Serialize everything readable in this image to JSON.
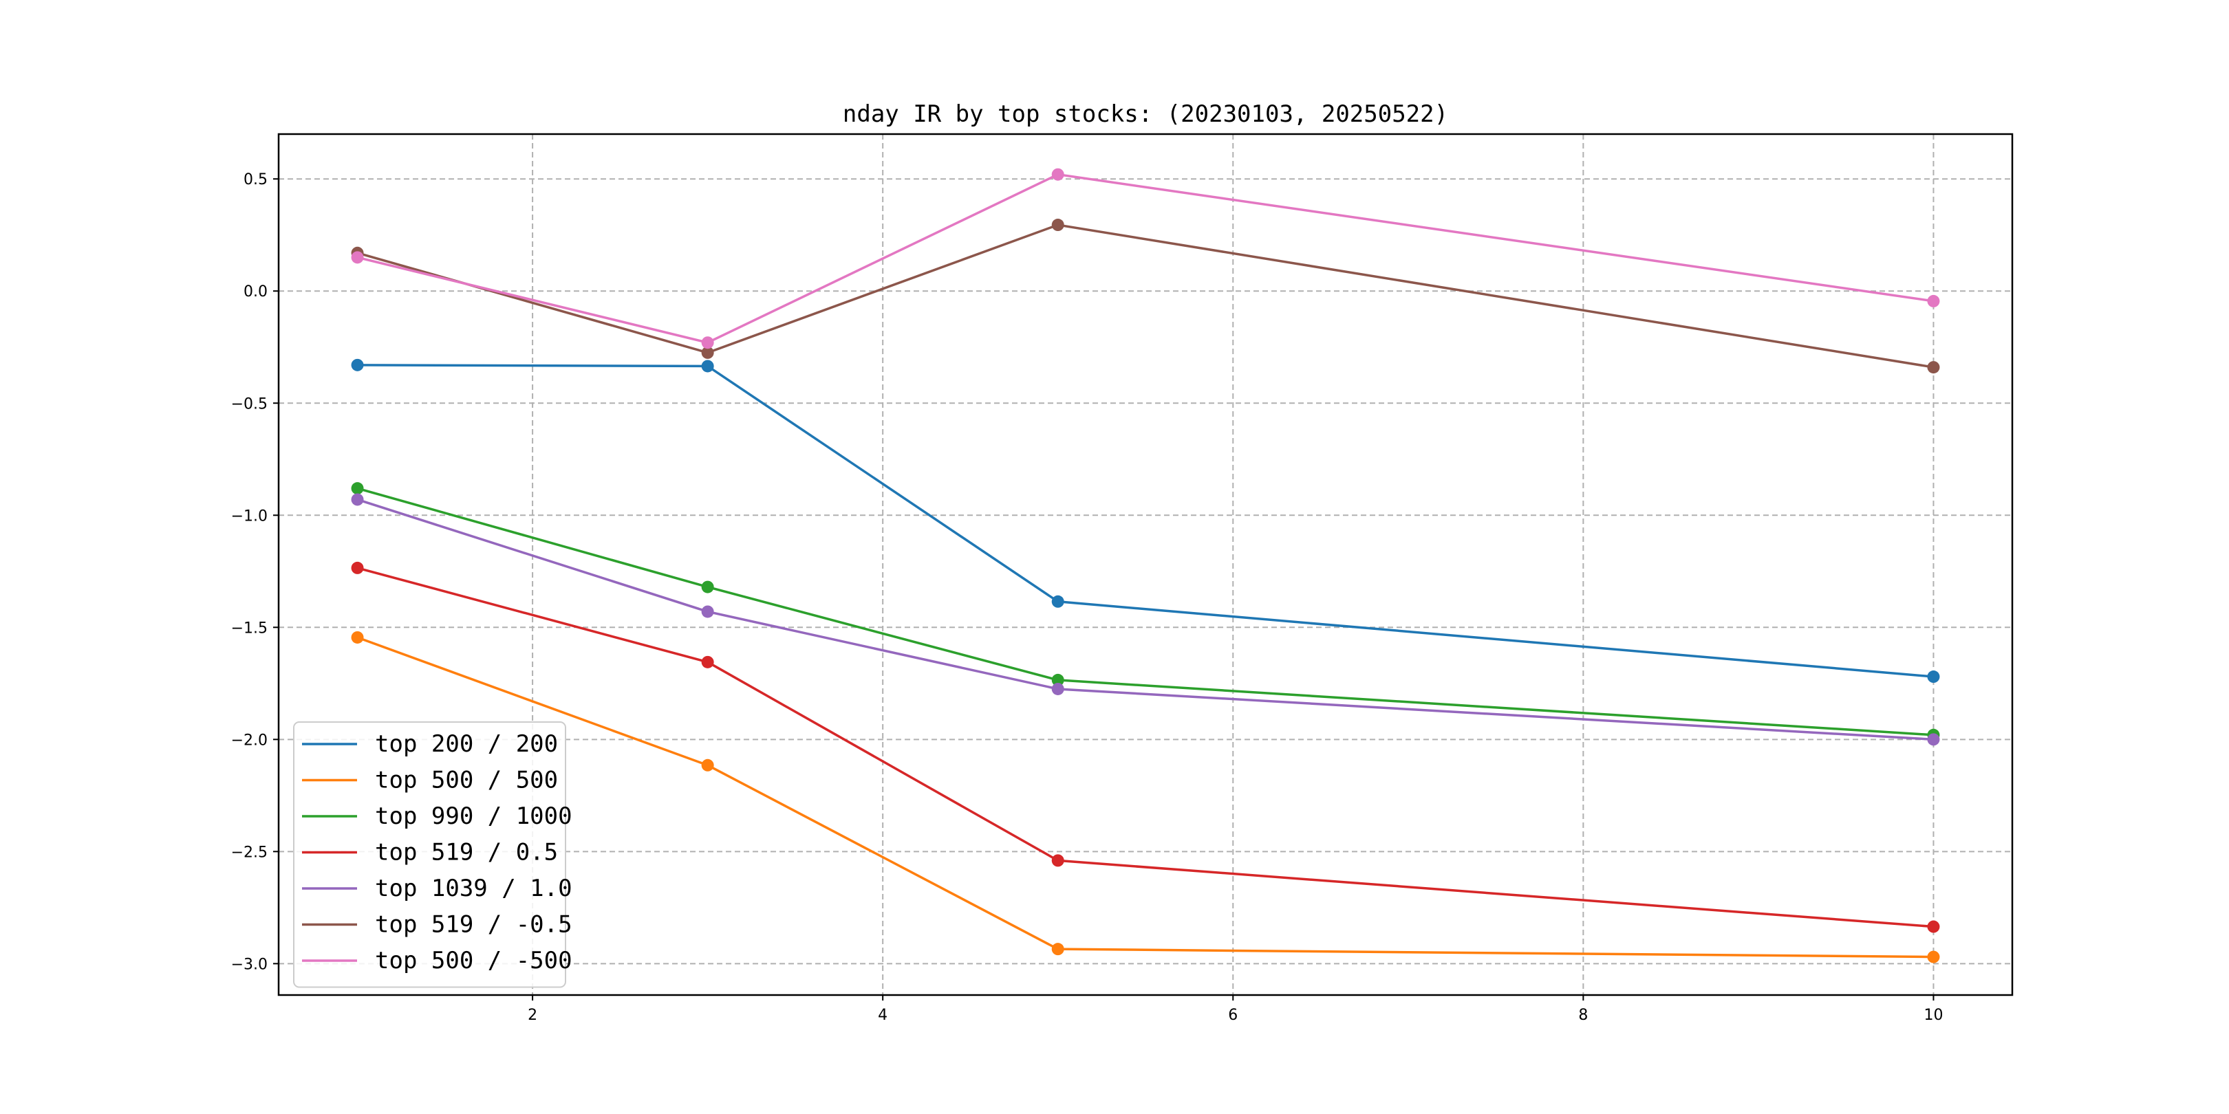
{
  "chart_data": {
    "type": "line",
    "title": "nday IR by top stocks: (20230103, 20250522)",
    "xlabel": "",
    "ylabel": "",
    "xlim": [
      0.55,
      10.45
    ],
    "ylim": [
      -3.14,
      0.7
    ],
    "x": [
      1,
      3,
      5,
      10
    ],
    "x_ticks": [
      2,
      4,
      6,
      8,
      10
    ],
    "y_ticks": [
      0.5,
      0.0,
      -0.5,
      -1.0,
      -1.5,
      -2.0,
      -2.5,
      -3.0
    ],
    "grid": true,
    "legend_position": "lower-left",
    "markers": true,
    "series": [
      {
        "name": "top 200 / 200",
        "color": "#1f77b4",
        "values": [
          -0.33,
          -0.335,
          -1.385,
          -1.72
        ]
      },
      {
        "name": "top 500 / 500",
        "color": "#ff7f0e",
        "values": [
          -1.545,
          -2.115,
          -2.935,
          -2.97
        ]
      },
      {
        "name": "top 990 / 1000",
        "color": "#2ca02c",
        "values": [
          -0.88,
          -1.32,
          -1.735,
          -1.98
        ]
      },
      {
        "name": "top 519 / 0.5",
        "color": "#d62728",
        "values": [
          -1.235,
          -1.655,
          -2.54,
          -2.835
        ]
      },
      {
        "name": "top 1039 / 1.0",
        "color": "#9467bd",
        "values": [
          -0.93,
          -1.43,
          -1.775,
          -2.0
        ]
      },
      {
        "name": "top 519 / -0.5",
        "color": "#8c564b",
        "values": [
          0.17,
          -0.275,
          0.295,
          -0.34
        ]
      },
      {
        "name": "top 500 / -500",
        "color": "#e377c2",
        "values": [
          0.15,
          -0.23,
          0.52,
          -0.045
        ]
      }
    ]
  }
}
